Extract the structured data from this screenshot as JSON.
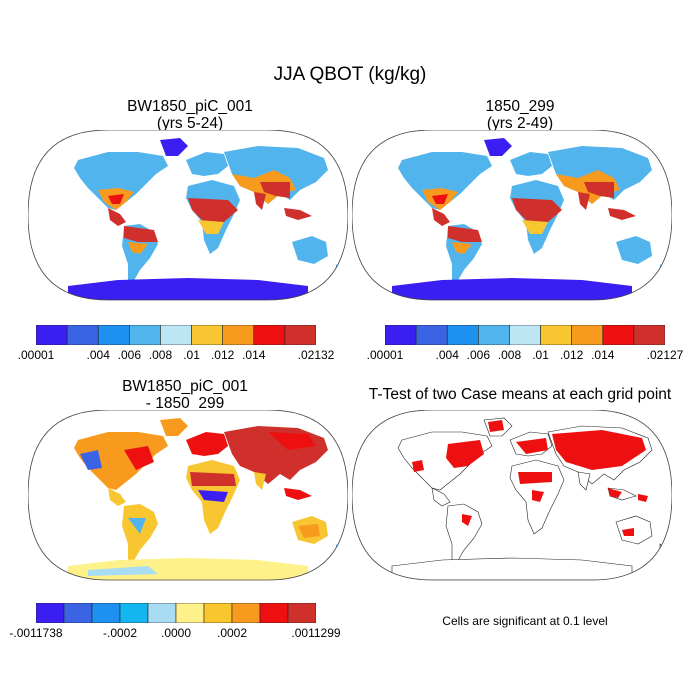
{
  "figure": {
    "title": "JJA QBOT (kg/kg)"
  },
  "panels": {
    "top_left": {
      "title_line1": "BW1850_piC_001",
      "title_line2": "(yrs 5-24)",
      "colorbar": {
        "colors": [
          "#3b1ef2",
          "#3a64e4",
          "#1e90f0",
          "#52b4ec",
          "#bde6f4",
          "#f8c630",
          "#f79a1e",
          "#ee1010",
          "#d0302c"
        ],
        "labels": [
          ".00001",
          ".004",
          ".006",
          ".008",
          ".01",
          ".012",
          ".014",
          ".02132"
        ]
      }
    },
    "top_right": {
      "title_line1": "1850_299",
      "title_line2": "(yrs 2-49)",
      "colorbar": {
        "colors": [
          "#3b1ef2",
          "#3a64e4",
          "#1e90f0",
          "#52b4ec",
          "#bde6f4",
          "#f8c630",
          "#f79a1e",
          "#ee1010",
          "#d0302c"
        ],
        "labels": [
          ".00001",
          ".004",
          ".006",
          ".008",
          ".01",
          ".012",
          ".014",
          ".02127"
        ]
      }
    },
    "bottom_left": {
      "title_line1": "BW1850_piC_001",
      "title_line2": "- 1850_299",
      "colorbar": {
        "colors": [
          "#3b1ef2",
          "#3a64e4",
          "#1e90f0",
          "#14b6f0",
          "#a8dcf2",
          "#fff18a",
          "#f9c62e",
          "#f79a1e",
          "#ee1010",
          "#d0302c"
        ],
        "labels": [
          "-.0011738",
          "-.0002",
          ".0000",
          ".0002",
          ".0011299"
        ]
      }
    },
    "bottom_right": {
      "title": "T-Test of two Case means at each grid point",
      "note": "Cells are significant at 0.1 level",
      "significant_color": "#ee1010"
    }
  }
}
